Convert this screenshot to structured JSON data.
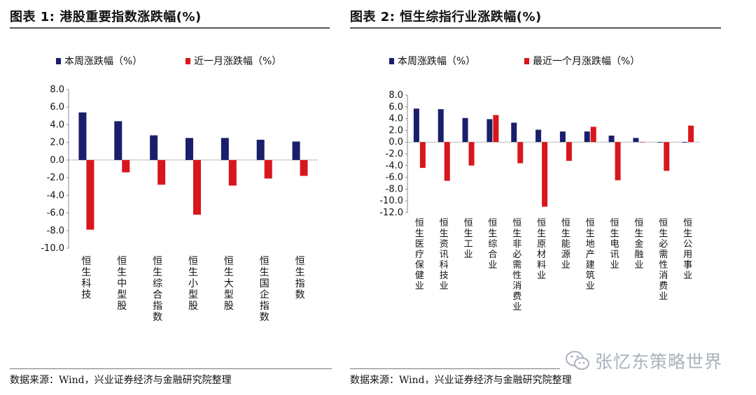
{
  "charts": [
    {
      "title": "图表 1:  港股重要指数涨跌幅(%)",
      "source": "数据来源：Wind，兴业证券经济与金融研究院整理"
    },
    {
      "title": "图表 2:  恒生综指行业涨跌幅(%)",
      "source": "数据来源：Wind，兴业证券经济与金融研究院整理"
    }
  ],
  "watermark": "张忆东策略世界",
  "colors": {
    "navy": "#1a1f6b",
    "red": "#d8161c"
  },
  "chart_data": [
    {
      "type": "bar",
      "title": "图表 1:  港股重要指数涨跌幅(%)",
      "categories": [
        "恒生科技",
        "恒生中型股",
        "恒生综合指数",
        "恒生小型股",
        "恒生大型股",
        "恒生国企指数",
        "恒生指数"
      ],
      "series": [
        {
          "name": "本周涨跌幅（%）",
          "color": "#1a1f6b",
          "values": [
            5.4,
            4.4,
            2.8,
            2.5,
            2.5,
            2.3,
            2.1
          ]
        },
        {
          "name": "近一月涨跌幅（%）",
          "color": "#d8161c",
          "values": [
            -7.9,
            -1.4,
            -2.8,
            -6.2,
            -2.9,
            -2.1,
            -1.8
          ]
        }
      ],
      "ylim": [
        -10,
        8
      ],
      "yticks": [
        "8.0",
        "6.0",
        "4.0",
        "2.0",
        "0.0",
        "-2.0",
        "-4.0",
        "-6.0",
        "-8.0",
        "-10.0"
      ],
      "legend": "top-left",
      "grid": false
    },
    {
      "type": "bar",
      "title": "图表 2:  恒生综指行业涨跌幅(%)",
      "categories": [
        "恒生医疗保健业",
        "恒生资讯科技业",
        "恒生工业",
        "恒生综合业",
        "恒生非必需性消费业",
        "恒生原材料业",
        "恒生能源业",
        "恒生地产建筑业",
        "恒生电讯业",
        "恒生金融业",
        "恒生必需性消费业",
        "恒生公用事业"
      ],
      "series": [
        {
          "name": "本周涨跌幅（%）",
          "color": "#1a1f6b",
          "values": [
            5.7,
            5.6,
            4.1,
            3.9,
            3.3,
            2.1,
            1.8,
            1.8,
            1.1,
            0.7,
            -0.1,
            -0.1
          ]
        },
        {
          "name": "最近一个月涨跌幅（%）",
          "color": "#d8161c",
          "values": [
            -4.4,
            -6.6,
            -4.0,
            4.6,
            -3.6,
            -11.0,
            -3.2,
            2.6,
            -6.5,
            0.0,
            -4.9,
            2.8
          ]
        }
      ],
      "ylim": [
        -12,
        8
      ],
      "yticks": [
        "8.0",
        "6.0",
        "4.0",
        "2.0",
        "0.0",
        "-2.0",
        "-4.0",
        "-6.0",
        "-8.0",
        "-10.0",
        "-12.0"
      ],
      "legend": "top-left",
      "grid": false
    }
  ]
}
